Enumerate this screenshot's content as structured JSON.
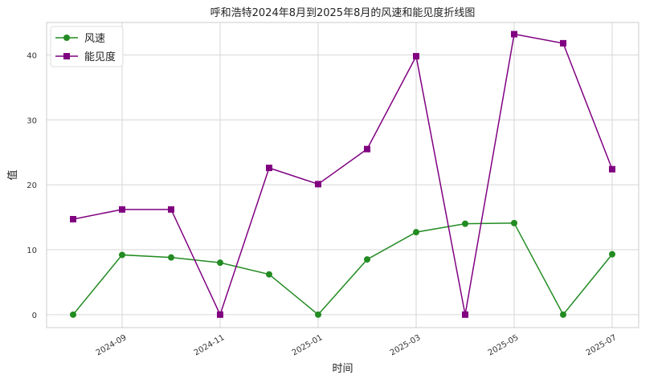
{
  "chart_data": {
    "type": "line",
    "title": "呼和浩特2024年8月到2025年8月的风速和能见度折线图",
    "xlabel": "时间",
    "ylabel": "值",
    "x": [
      "2024-08",
      "2024-09",
      "2024-10",
      "2024-11",
      "2024-12",
      "2025-01",
      "2025-02",
      "2025-03",
      "2025-04",
      "2025-05",
      "2025-06",
      "2025-07"
    ],
    "x_tick_labels": [
      "2024-09",
      "2024-11",
      "2025-01",
      "2025-03",
      "2025-05",
      "2025-07"
    ],
    "ylim": [
      -2,
      45
    ],
    "y_ticks": [
      0,
      10,
      20,
      30,
      40
    ],
    "grid": true,
    "legend_position": "top-left",
    "series": [
      {
        "name": "风速",
        "color": "#228B22",
        "marker": "circle",
        "values": [
          0,
          9.2,
          8.8,
          8.0,
          6.2,
          0,
          8.5,
          12.7,
          14.0,
          14.1,
          0,
          9.3
        ]
      },
      {
        "name": "能见度",
        "color": "#800080",
        "marker": "square",
        "values": [
          14.7,
          16.2,
          16.2,
          0,
          22.6,
          20.1,
          25.5,
          39.8,
          0,
          43.2,
          41.8,
          22.4
        ]
      }
    ]
  }
}
